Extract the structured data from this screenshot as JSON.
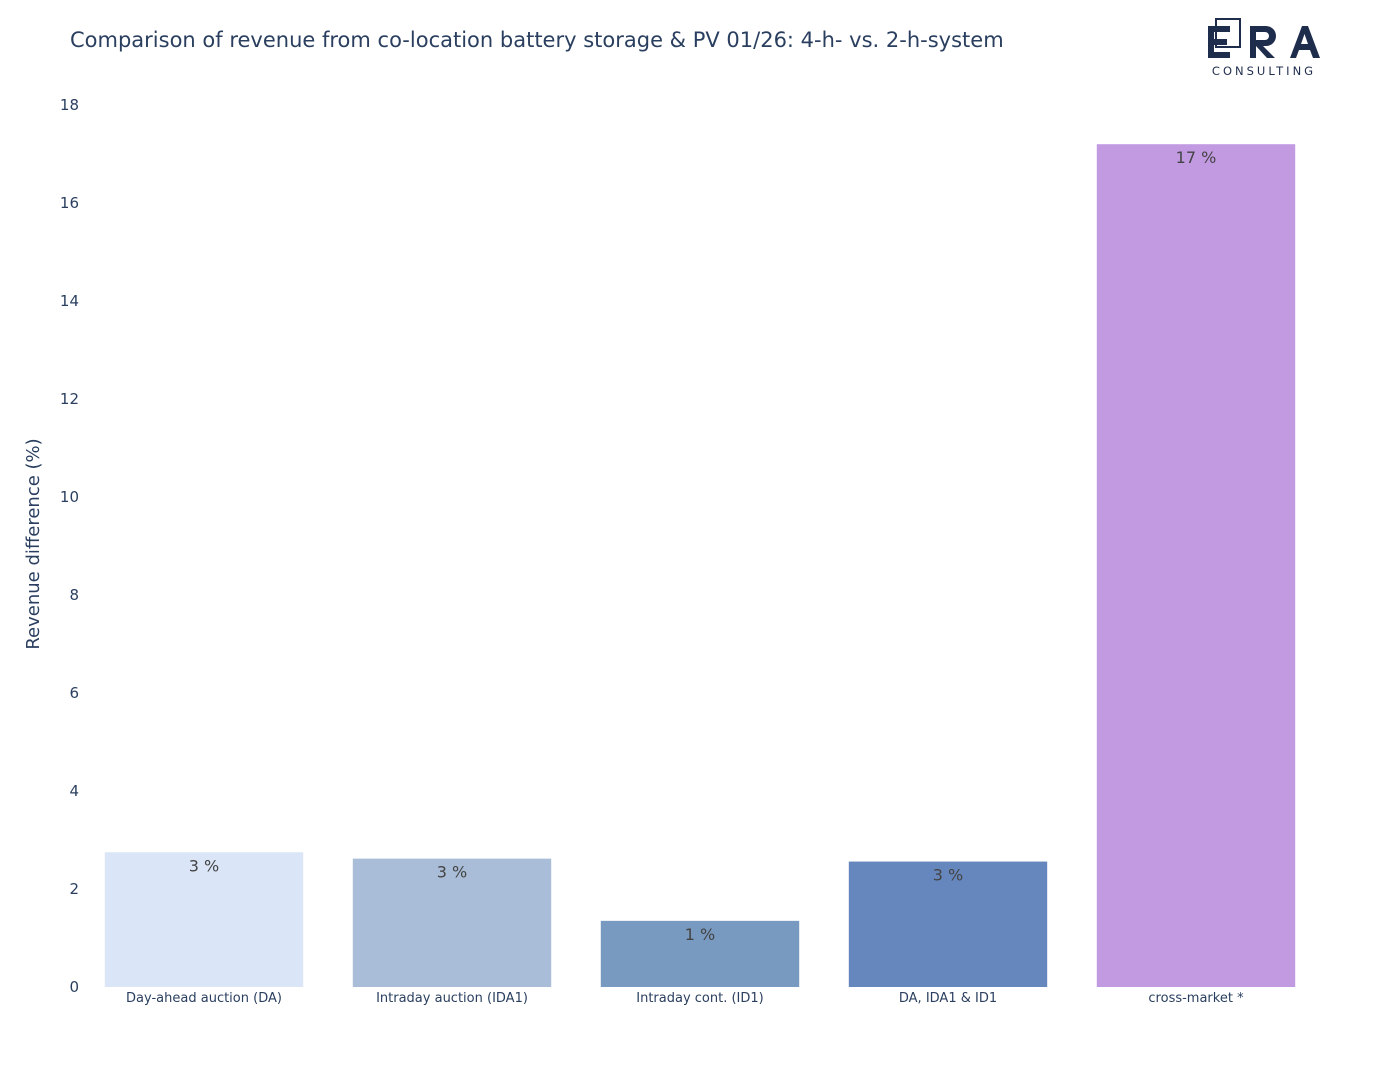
{
  "chart_data": {
    "type": "bar",
    "title": "Comparison of revenue from co-location battery storage & PV 01/26: 4-h- vs. 2-h-system",
    "xlabel": "",
    "ylabel": "Revenue difference (%)",
    "ylim": [
      0,
      18
    ],
    "yticks": [
      0,
      2,
      4,
      6,
      8,
      10,
      12,
      14,
      16,
      18
    ],
    "grid": false,
    "categories": [
      "Day-ahead auction (DA)",
      "Intraday auction (IDA1)",
      "Intraday cont. (ID1)",
      "DA, IDA1 & ID1",
      "cross-market *"
    ],
    "values": [
      2.75,
      2.62,
      1.35,
      2.56,
      17.2
    ],
    "data_labels": [
      "3 %",
      "3 %",
      "1 %",
      "3 %",
      "17 %"
    ],
    "colors": [
      "#dae6f7",
      "#aabdd8",
      "#7899c0",
      "#6687bd",
      "#c29ae2"
    ]
  },
  "logo": {
    "main": "ERA",
    "sub": "CONSULTING"
  }
}
